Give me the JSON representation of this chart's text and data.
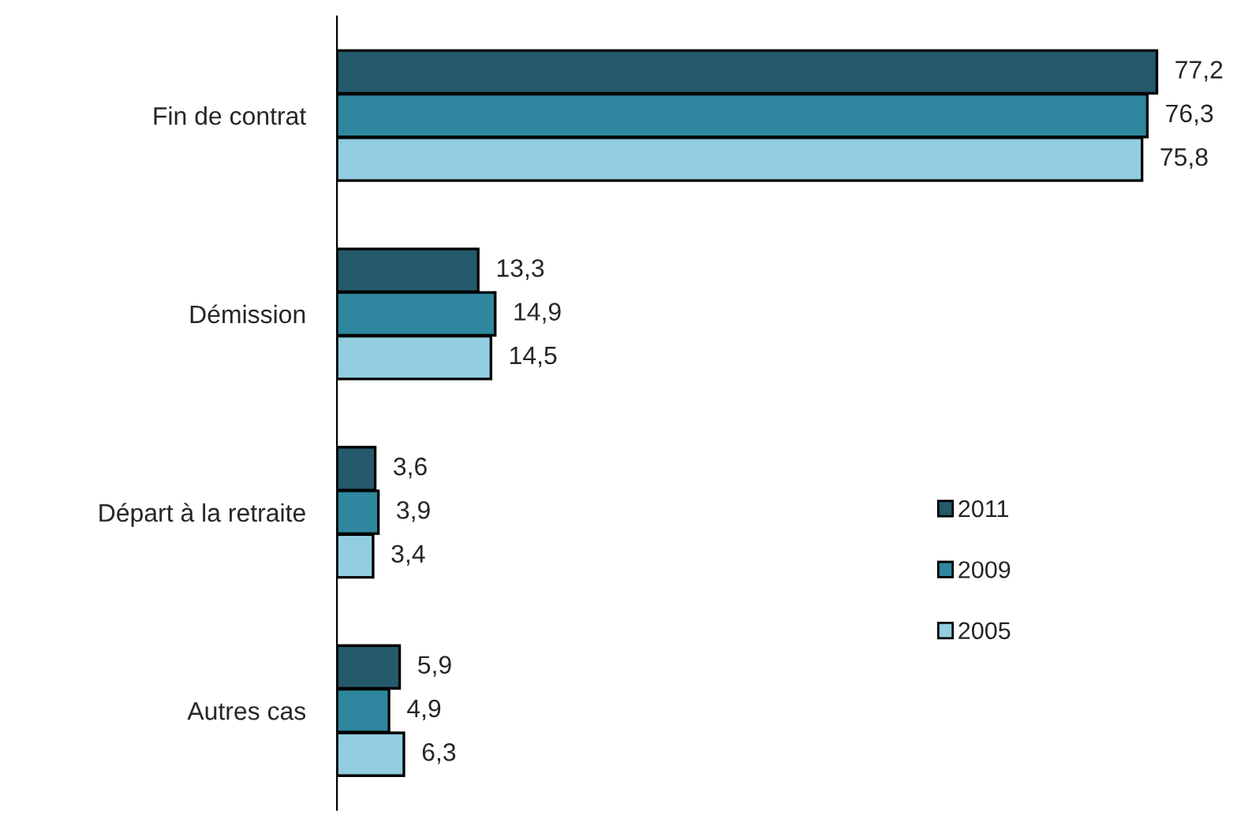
{
  "chart_data": {
    "type": "bar",
    "orientation": "horizontal",
    "categories": [
      "Fin de contrat",
      "Démission",
      "Départ à la retraite",
      "Autres cas"
    ],
    "series": [
      {
        "name": "2011",
        "color": "#245a6b",
        "values": [
          77.2,
          13.3,
          3.6,
          5.9
        ],
        "value_labels": [
          "77,2",
          "13,3",
          "3,6",
          "5,9"
        ]
      },
      {
        "name": "2009",
        "color": "#2e879e",
        "values": [
          76.3,
          14.9,
          3.9,
          4.9
        ],
        "value_labels": [
          "76,3",
          "14,9",
          "3,9",
          "4,9"
        ]
      },
      {
        "name": "2005",
        "color": "#92cde0",
        "values": [
          75.8,
          14.5,
          3.4,
          6.3
        ],
        "value_labels": [
          "75,8",
          "14,5",
          "3,4",
          "6,3"
        ]
      }
    ],
    "legend": "right",
    "grid": false
  }
}
